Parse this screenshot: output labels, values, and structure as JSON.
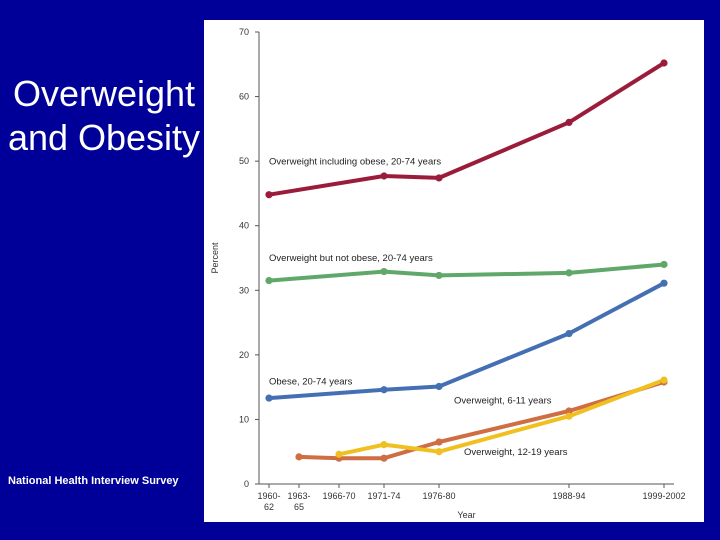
{
  "slide": {
    "title_line1": "Overweight",
    "title_line2": "and Obesity",
    "source": "National Health Interview Survey"
  },
  "colors": {
    "background": "#000099",
    "text": "#ffffff",
    "panel": "#ffffff",
    "axis": "#555555"
  },
  "chart_data": {
    "type": "line",
    "title": "",
    "xlabel": "Year",
    "ylabel": "Percent",
    "ylim": [
      0,
      70
    ],
    "yticks": [
      0,
      10,
      20,
      30,
      40,
      50,
      60,
      70
    ],
    "grid": false,
    "x_ticks": [
      {
        "pos": 1961,
        "line1": "1960-",
        "line2": "62"
      },
      {
        "pos": 1964,
        "line1": "1963-",
        "line2": "65"
      },
      {
        "pos": 1968,
        "line1": "1966-70",
        "line2": ""
      },
      {
        "pos": 1972.5,
        "line1": "1971-74",
        "line2": ""
      },
      {
        "pos": 1978,
        "line1": "1976-80",
        "line2": ""
      },
      {
        "pos": 1991,
        "line1": "1988-94",
        "line2": ""
      },
      {
        "pos": 2000.5,
        "line1": "1999-2002",
        "line2": ""
      }
    ],
    "xlim": [
      1960,
      2001.5
    ],
    "series": [
      {
        "name": "Overweight including obese, 20-74 years",
        "color": "#9b1c3a",
        "label_anchor": [
          1961,
          49.5
        ],
        "points": [
          [
            1961,
            44.8
          ],
          [
            1972.5,
            47.7
          ],
          [
            1978,
            47.4
          ],
          [
            1991,
            56.0
          ],
          [
            2000.5,
            65.2
          ]
        ]
      },
      {
        "name": "Overweight but not obese, 20-74 years",
        "color": "#5fa86a",
        "label_anchor": [
          1961,
          34.5
        ],
        "points": [
          [
            1961,
            31.5
          ],
          [
            1972.5,
            32.9
          ],
          [
            1978,
            32.3
          ],
          [
            1991,
            32.7
          ],
          [
            2000.5,
            34.0
          ]
        ]
      },
      {
        "name": "Obese, 20-74 years",
        "color": "#4470b3",
        "label_anchor": [
          1961,
          15.4
        ],
        "points": [
          [
            1961,
            13.3
          ],
          [
            1972.5,
            14.6
          ],
          [
            1978,
            15.1
          ],
          [
            1991,
            23.3
          ],
          [
            2000.5,
            31.1
          ]
        ]
      },
      {
        "name": "Overweight, 6-11 years",
        "color": "#cf6d43",
        "label_anchor": [
          1979.5,
          12.5
        ],
        "points": [
          [
            1964,
            4.2
          ],
          [
            1968,
            4.0
          ],
          [
            1972.5,
            4.0
          ],
          [
            1978,
            6.5
          ],
          [
            1991,
            11.3
          ],
          [
            2000.5,
            15.8
          ]
        ]
      },
      {
        "name": "Overweight, 12-19 years",
        "color": "#f0c020",
        "label_anchor": [
          1980.5,
          4.5
        ],
        "points": [
          [
            1968,
            4.6
          ],
          [
            1972.5,
            6.1
          ],
          [
            1978,
            5.0
          ],
          [
            1991,
            10.5
          ],
          [
            2000.5,
            16.1
          ]
        ]
      }
    ]
  }
}
